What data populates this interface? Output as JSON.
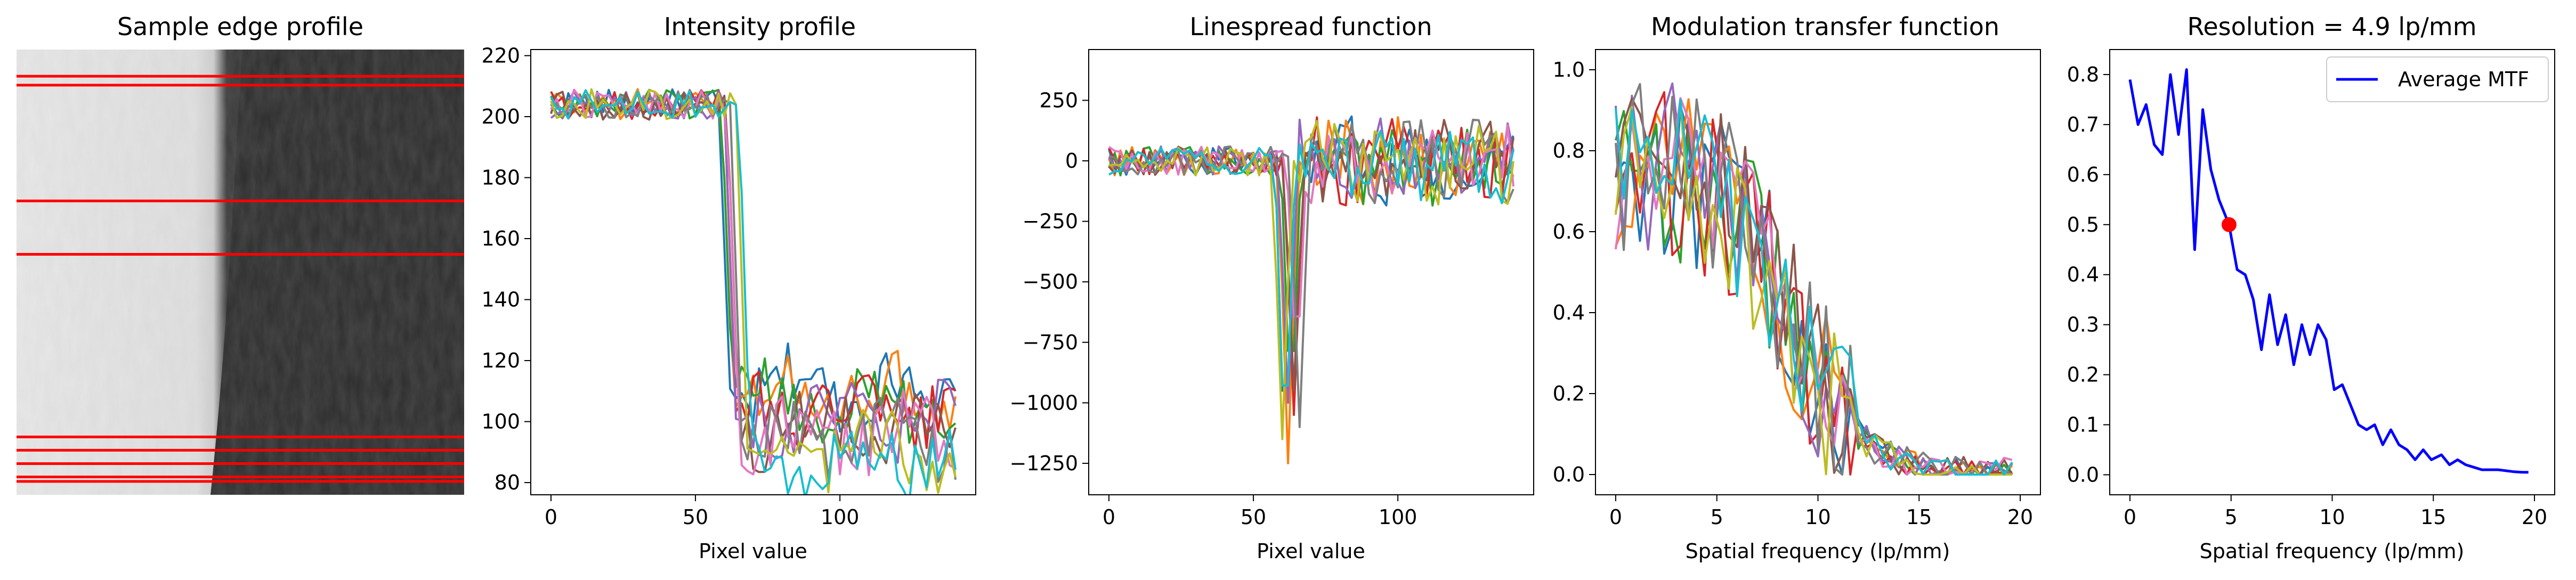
{
  "figure": {
    "panel_titles": [
      "Sample edge profile",
      "Intensity profile",
      "Linespread function",
      "Modulation transfer function",
      "Resolution = 4.9 lp/mm"
    ]
  },
  "colors": {
    "tab10": [
      "#1f77b4",
      "#ff7f0e",
      "#2ca02c",
      "#d62728",
      "#9467bd",
      "#8c564b",
      "#e377c2",
      "#7f7f7f",
      "#bcbd22",
      "#17becf"
    ],
    "edge_line": "#ff0000",
    "mtf_line": "#0000ff",
    "marker": "#ff0000"
  },
  "chart_data": [
    {
      "type": "image",
      "title": "Sample edge profile",
      "description_values": {
        "edge_row_positions_fraction": [
          0.06,
          0.08,
          0.34,
          0.46,
          0.87,
          0.9,
          0.93,
          0.96,
          0.97
        ]
      }
    },
    {
      "type": "line",
      "title": "Intensity profile",
      "xlabel": "Pixel value",
      "ylabel": "",
      "xlim": [
        -7,
        147
      ],
      "ylim": [
        76,
        222
      ],
      "xticks": [
        0,
        50,
        100
      ],
      "yticks": [
        80,
        100,
        120,
        140,
        160,
        180,
        200,
        220
      ],
      "n_series": 10,
      "x_range": [
        0,
        140
      ],
      "high_level": 204,
      "low_level_range": [
        85,
        120
      ],
      "edge_positions": [
        60,
        61,
        61,
        62,
        62,
        63,
        63,
        64,
        66,
        67
      ]
    },
    {
      "type": "line",
      "title": "Linespread function",
      "xlabel": "Pixel value",
      "ylabel": "",
      "xlim": [
        -7,
        147
      ],
      "ylim": [
        -1380,
        460
      ],
      "xticks": [
        0,
        50,
        100
      ],
      "yticks": [
        250,
        0,
        -250,
        -500,
        -750,
        -1000,
        -1250
      ],
      "n_series": 10,
      "min_values": [
        -1330,
        -1250,
        -1100,
        -1050,
        -1000,
        -950,
        -900,
        -1100,
        -1150,
        -1300
      ],
      "edge_positions": [
        61,
        62,
        63,
        64,
        62,
        64,
        65,
        66,
        60,
        61
      ]
    },
    {
      "type": "line",
      "title": "Modulation transfer function",
      "xlabel": "Spatial frequency (lp/mm)",
      "ylabel": "",
      "xlim": [
        -1,
        21
      ],
      "ylim": [
        -0.05,
        1.05
      ],
      "xticks": [
        0,
        5,
        10,
        15,
        20
      ],
      "yticks": [
        0.0,
        0.2,
        0.4,
        0.6,
        0.8,
        1.0
      ],
      "n_series": 10,
      "x_max": 19.7
    },
    {
      "type": "line",
      "title": "Resolution = 4.9 lp/mm",
      "xlabel": "Spatial frequency (lp/mm)",
      "ylabel": "",
      "xlim": [
        -1,
        21
      ],
      "ylim": [
        -0.04,
        0.85
      ],
      "xticks": [
        0,
        5,
        10,
        15,
        20
      ],
      "yticks": [
        0.0,
        0.1,
        0.2,
        0.3,
        0.4,
        0.5,
        0.6,
        0.7,
        0.8
      ],
      "legend": {
        "entries": [
          "Average MTF"
        ],
        "placement": "top-right"
      },
      "series": [
        {
          "name": "Average MTF",
          "x": [
            0,
            0.4,
            0.8,
            1.2,
            1.6,
            2.0,
            2.4,
            2.8,
            3.2,
            3.6,
            4.0,
            4.4,
            4.9,
            5.3,
            5.7,
            6.1,
            6.5,
            6.9,
            7.3,
            7.7,
            8.1,
            8.5,
            8.9,
            9.3,
            9.7,
            10.1,
            10.5,
            10.9,
            11.3,
            11.7,
            12.1,
            12.5,
            12.9,
            13.3,
            13.7,
            14.1,
            14.5,
            14.9,
            15.4,
            15.8,
            16.2,
            16.6,
            17.0,
            17.4,
            17.8,
            18.2,
            18.6,
            19.0,
            19.4,
            19.7
          ],
          "y": [
            0.79,
            0.7,
            0.74,
            0.66,
            0.64,
            0.8,
            0.68,
            0.81,
            0.45,
            0.73,
            0.61,
            0.55,
            0.5,
            0.41,
            0.4,
            0.35,
            0.25,
            0.36,
            0.26,
            0.32,
            0.22,
            0.3,
            0.24,
            0.3,
            0.27,
            0.17,
            0.18,
            0.14,
            0.1,
            0.09,
            0.1,
            0.06,
            0.09,
            0.06,
            0.05,
            0.03,
            0.05,
            0.03,
            0.04,
            0.02,
            0.03,
            0.02,
            0.015,
            0.01,
            0.01,
            0.01,
            0.008,
            0.006,
            0.005,
            0.005
          ]
        }
      ],
      "marker_point": {
        "x": 4.9,
        "y": 0.5
      }
    }
  ]
}
